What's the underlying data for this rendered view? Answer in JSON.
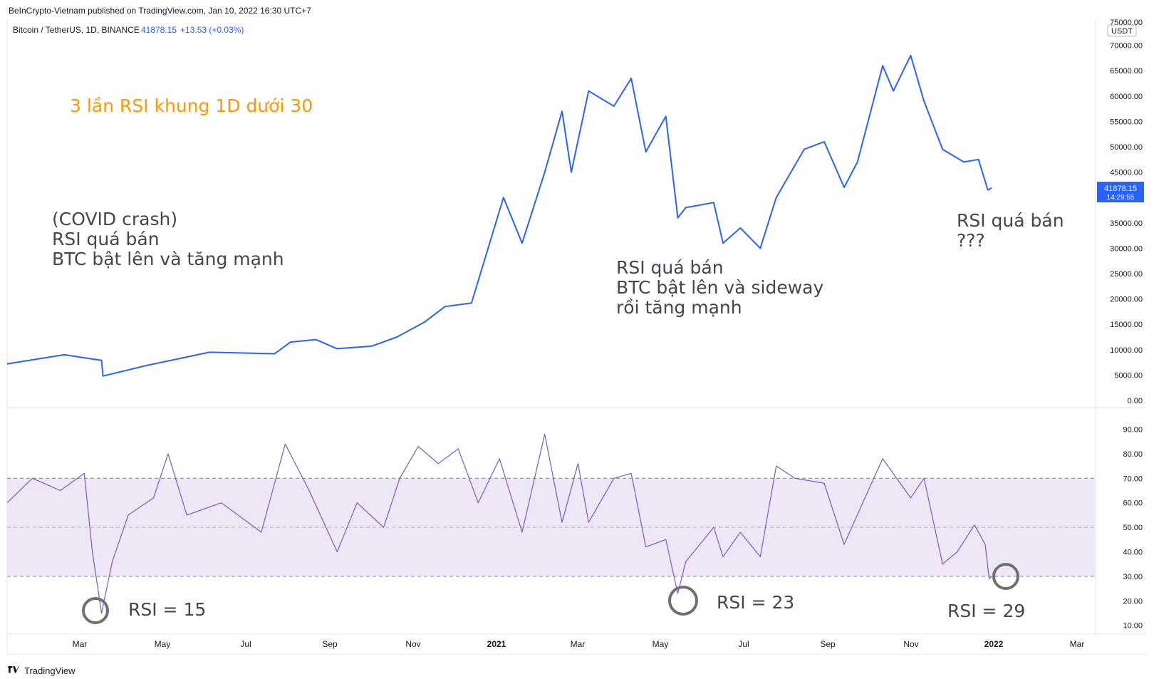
{
  "header": {
    "publish_text": "BeInCrypto-Vietnam published on TradingView.com, Jan 10, 2022 16:30 UTC+7",
    "symbol": "Bitcoin / TetherUS, 1D, BINANCE",
    "last_value": "41878.15",
    "change": "+13.53 (+0.03%)"
  },
  "footer": {
    "brand": "TradingView"
  },
  "price_panel": {
    "currency_badge": "USDT",
    "top_tick": "75000.00",
    "last_price_label": "41878.15",
    "countdown_label": "14:29:55",
    "title": "3 lần RSI khung 1D dưới 30",
    "annotation_covid": [
      "(COVID crash)",
      "RSI quá bán",
      "BTC bật lên và tăng mạnh"
    ],
    "annotation_may": [
      "RSI quá bán",
      "BTC bật lên và sideway",
      "rồi tăng mạnh"
    ],
    "annotation_now": [
      "RSI quá bán",
      "???"
    ]
  },
  "rsi_panel": {
    "label_1": "RSI = 15",
    "label_2": "RSI = 23",
    "label_3": "RSI = 29"
  },
  "x_axis_labels": [
    "Mar",
    "May",
    "Jul",
    "Sep",
    "Nov",
    "2021",
    "Mar",
    "May",
    "Jul",
    "Sep",
    "Nov",
    "2022",
    "Mar"
  ],
  "colors": {
    "price_line": "#2962ff",
    "rsi_line": "#7e57c2",
    "rsi_band": "#ede7f6",
    "title_orange": "#ff9800",
    "annotation_text": "#434651",
    "circle": "#6f6f78"
  },
  "chart_data": [
    {
      "type": "line",
      "name": "price",
      "title": "",
      "y_ticks": [
        0,
        5000,
        10000,
        15000,
        20000,
        25000,
        30000,
        35000,
        40000,
        45000,
        50000,
        55000,
        60000,
        65000,
        70000
      ],
      "y_tick_labels": [
        "0.00",
        "5000.00",
        "10000.00",
        "15000.00",
        "20000.00",
        "25000.00",
        "30000.00",
        "35000.00",
        "40000.00",
        "45000.00",
        "50000.00",
        "55000.00",
        "60000.00",
        "65000.00",
        "70000.00"
      ],
      "ylim": [
        0,
        75000
      ],
      "x": [
        "2020-01-01",
        "2020-02-13",
        "2020-03-12",
        "2020-03-13",
        "2020-04-15",
        "2020-06-01",
        "2020-07-20",
        "2020-08-01",
        "2020-08-20",
        "2020-09-05",
        "2020-10-01",
        "2020-10-20",
        "2020-11-10",
        "2020-11-25",
        "2020-12-15",
        "2021-01-08",
        "2021-01-22",
        "2021-02-08",
        "2021-02-21",
        "2021-02-28",
        "2021-03-13",
        "2021-04-01",
        "2021-04-14",
        "2021-04-25",
        "2021-05-10",
        "2021-05-19",
        "2021-05-25",
        "2021-06-15",
        "2021-06-22",
        "2021-07-05",
        "2021-07-20",
        "2021-08-01",
        "2021-08-22",
        "2021-09-06",
        "2021-09-21",
        "2021-10-01",
        "2021-10-20",
        "2021-10-28",
        "2021-11-10",
        "2021-11-20",
        "2021-12-04",
        "2021-12-20",
        "2021-12-31",
        "2022-01-07",
        "2022-01-10"
      ],
      "values": [
        7200,
        9000,
        7900,
        4800,
        6900,
        9500,
        9200,
        11500,
        12000,
        10200,
        10700,
        12500,
        15500,
        18500,
        19200,
        40000,
        31000,
        45000,
        57000,
        45000,
        61000,
        58000,
        63500,
        49000,
        56000,
        36000,
        38000,
        39000,
        31000,
        34000,
        30000,
        40000,
        49500,
        51000,
        42000,
        47000,
        66000,
        61000,
        68000,
        59000,
        49500,
        47000,
        47500,
        41500,
        41878.15
      ]
    },
    {
      "type": "line",
      "name": "RSI",
      "y_ticks": [
        10,
        20,
        30,
        40,
        50,
        60,
        70,
        80,
        90
      ],
      "y_tick_labels": [
        "10.00",
        "20.00",
        "30.00",
        "40.00",
        "50.00",
        "60.00",
        "70.00",
        "80.00",
        "90.00"
      ],
      "ylim": [
        7,
        98
      ],
      "band": [
        30,
        70
      ],
      "midline": 50,
      "x": [
        "2020-01-01",
        "2020-01-20",
        "2020-02-10",
        "2020-02-28",
        "2020-03-05",
        "2020-03-12",
        "2020-03-20",
        "2020-04-01",
        "2020-04-20",
        "2020-05-01",
        "2020-05-15",
        "2020-06-10",
        "2020-07-10",
        "2020-07-28",
        "2020-08-15",
        "2020-09-05",
        "2020-09-20",
        "2020-10-10",
        "2020-10-22",
        "2020-11-05",
        "2020-11-20",
        "2020-12-05",
        "2020-12-20",
        "2021-01-05",
        "2021-01-22",
        "2021-02-08",
        "2021-02-21",
        "2021-03-05",
        "2021-03-13",
        "2021-04-01",
        "2021-04-14",
        "2021-04-25",
        "2021-05-10",
        "2021-05-19",
        "2021-05-25",
        "2021-06-15",
        "2021-06-22",
        "2021-07-05",
        "2021-07-20",
        "2021-08-01",
        "2021-08-15",
        "2021-09-06",
        "2021-09-21",
        "2021-10-05",
        "2021-10-20",
        "2021-11-10",
        "2021-11-20",
        "2021-12-04",
        "2021-12-15",
        "2021-12-28",
        "2022-01-05",
        "2022-01-08",
        "2022-01-10"
      ],
      "values": [
        60,
        70,
        65,
        72,
        40,
        15,
        36,
        55,
        62,
        80,
        55,
        60,
        48,
        84,
        65,
        40,
        60,
        50,
        70,
        83,
        76,
        82,
        60,
        78,
        48,
        88,
        52,
        76,
        52,
        70,
        72,
        42,
        45,
        23,
        36,
        50,
        38,
        48,
        38,
        75,
        70,
        68,
        43,
        60,
        78,
        62,
        70,
        35,
        40,
        51,
        43,
        29,
        30
      ]
    }
  ]
}
